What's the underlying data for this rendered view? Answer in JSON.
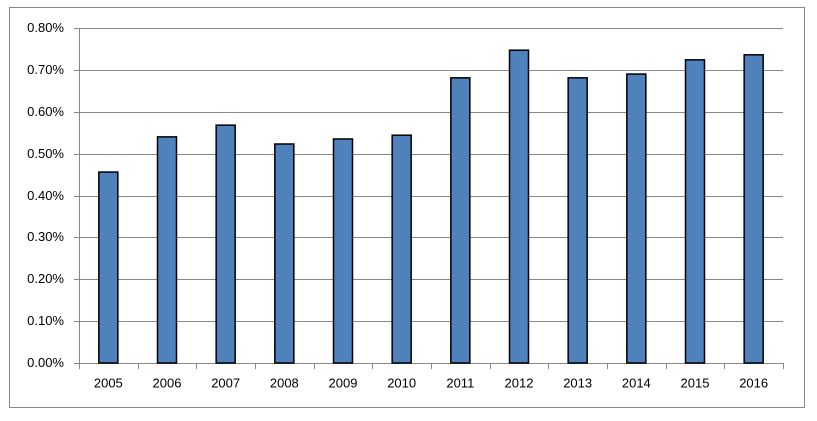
{
  "chart_data": {
    "type": "bar",
    "categories": [
      "2005",
      "2006",
      "2007",
      "2008",
      "2009",
      "2010",
      "2011",
      "2012",
      "2013",
      "2014",
      "2015",
      "2016"
    ],
    "values": [
      0.456,
      0.54,
      0.568,
      0.523,
      0.535,
      0.544,
      0.681,
      0.747,
      0.681,
      0.69,
      0.724,
      0.736
    ],
    "color": "#4f81bd",
    "ylim": [
      0,
      0.8
    ],
    "yticks": [
      {
        "value": 0,
        "label": "0.00%"
      },
      {
        "value": 0.1,
        "label": "0.10%"
      },
      {
        "value": 0.2,
        "label": "0.20%"
      },
      {
        "value": 0.3,
        "label": "0.30%"
      },
      {
        "value": 0.4,
        "label": "0.40%"
      },
      {
        "value": 0.5,
        "label": "0.50%"
      },
      {
        "value": 0.6,
        "label": "0.60%"
      },
      {
        "value": 0.7,
        "label": "0.70%"
      },
      {
        "value": 0.8,
        "label": "0.80%"
      }
    ],
    "grid": true
  }
}
